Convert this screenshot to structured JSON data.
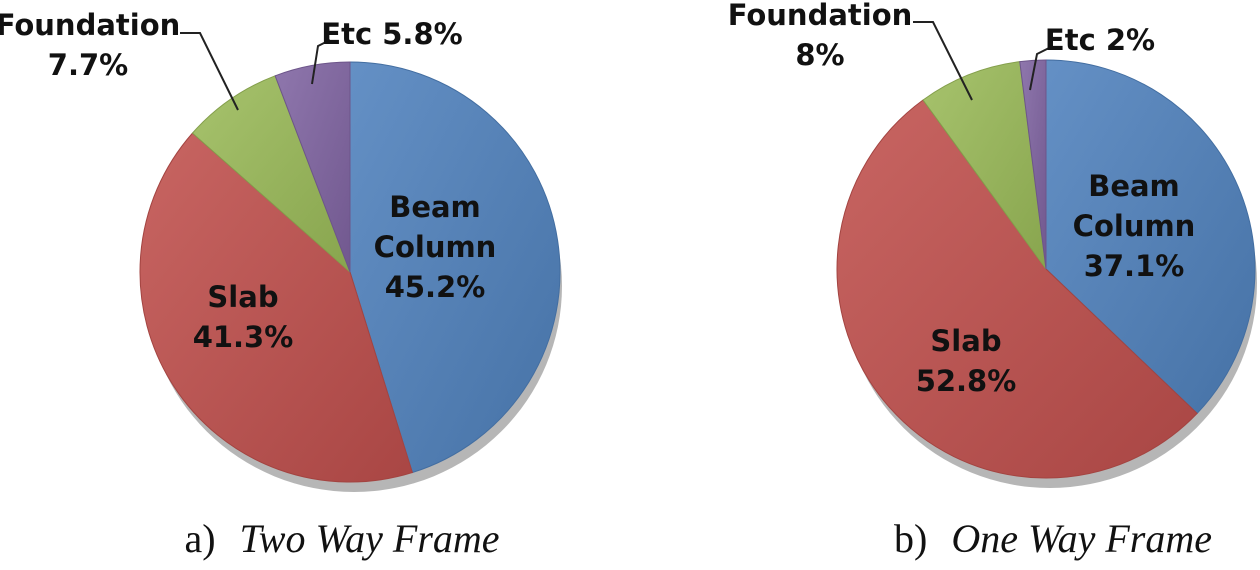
{
  "colors": {
    "beam_column": "#4F81BD",
    "slab": "#C0504D",
    "foundation": "#9BBB59",
    "etc": "#8064A2"
  },
  "chart_data": [
    {
      "type": "pie",
      "caption_prefix": "a)",
      "caption_title": "Two Way Frame",
      "slices": [
        {
          "key": "beam_column",
          "lines": [
            "Beam",
            "Column",
            "45.2%"
          ],
          "value": 45.2
        },
        {
          "key": "slab",
          "lines": [
            "Slab",
            "41.3%"
          ],
          "value": 41.3
        },
        {
          "key": "foundation",
          "lines": [
            "Foundation",
            "7.7%"
          ],
          "value": 7.7
        },
        {
          "key": "etc",
          "lines": [
            "Etc 5.8%"
          ],
          "value": 5.8
        }
      ]
    },
    {
      "type": "pie",
      "caption_prefix": "b)",
      "caption_title": "One Way Frame",
      "slices": [
        {
          "key": "beam_column",
          "lines": [
            "Beam",
            "Column",
            "37.1%"
          ],
          "value": 37.1
        },
        {
          "key": "slab",
          "lines": [
            "Slab",
            "52.8%"
          ],
          "value": 52.8
        },
        {
          "key": "foundation",
          "lines": [
            "Foundation",
            "8%"
          ],
          "value": 8
        },
        {
          "key": "etc",
          "lines": [
            "Etc 2%"
          ],
          "value": 2
        }
      ]
    }
  ]
}
